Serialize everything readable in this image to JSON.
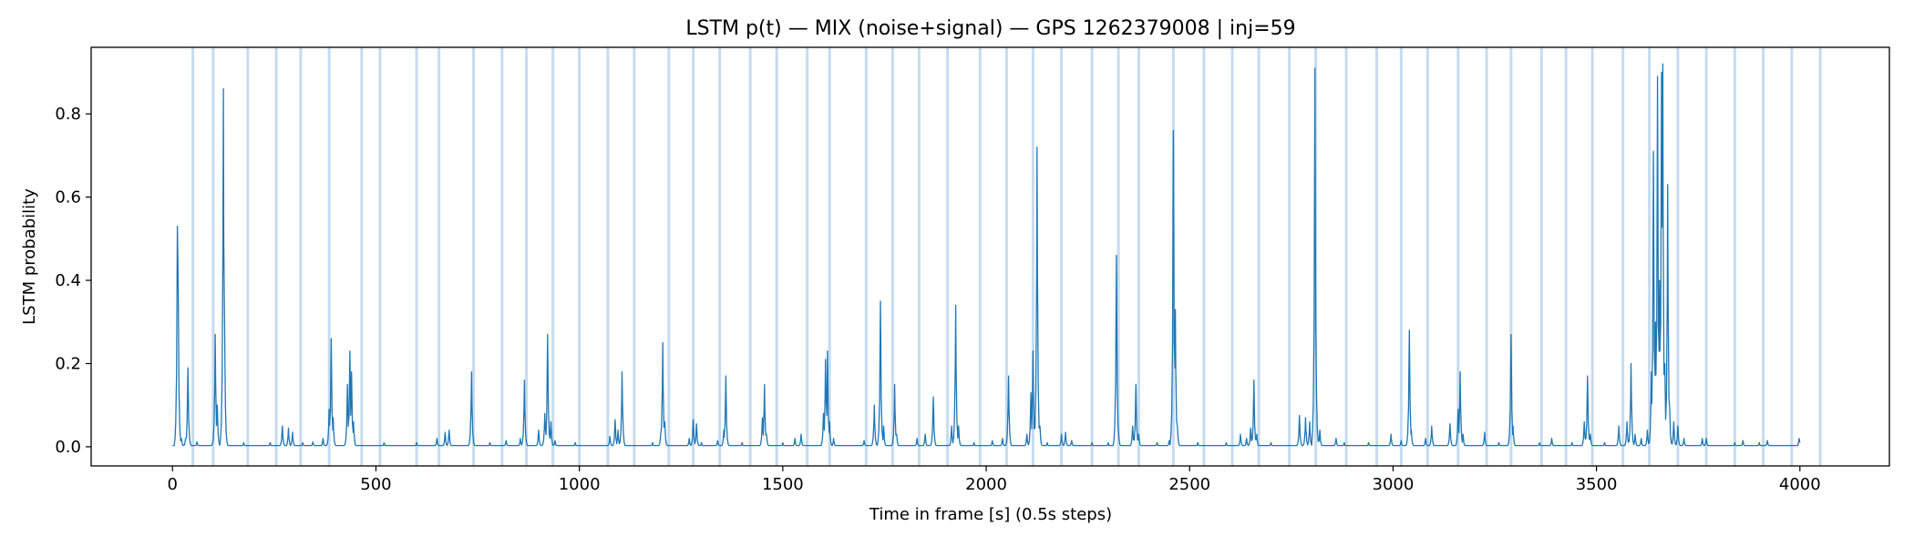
{
  "chart_data": {
    "type": "line",
    "title": "LSTM p(t) — MIX (noise+signal) — GPS 1262379008 | inj=59",
    "xlabel": "Time in frame [s] (0.5s steps)",
    "ylabel": "LSTM probability",
    "xlim": [
      -200,
      4220
    ],
    "ylim": [
      -0.046,
      0.96
    ],
    "xticks": [
      0,
      500,
      1000,
      1500,
      2000,
      2500,
      3000,
      3500,
      4000
    ],
    "yticks": [
      0.0,
      0.2,
      0.4,
      0.6,
      0.8
    ],
    "ytick_labels": [
      "0.0",
      "0.2",
      "0.4",
      "0.6",
      "0.8"
    ],
    "grid": false,
    "line_color": "#1f77b4",
    "injection_band_color": "#c6dbef",
    "injection_times": [
      50,
      100,
      185,
      255,
      315,
      385,
      465,
      510,
      600,
      655,
      740,
      810,
      870,
      935,
      1000,
      1070,
      1135,
      1220,
      1280,
      1345,
      1420,
      1485,
      1560,
      1615,
      1705,
      1770,
      1835,
      1905,
      1985,
      2050,
      2115,
      2185,
      2260,
      2325,
      2375,
      2460,
      2535,
      2605,
      2670,
      2745,
      2810,
      2885,
      2960,
      3020,
      3085,
      3160,
      3230,
      3290,
      3365,
      3425,
      3490,
      3565,
      3630,
      3700,
      3770,
      3840,
      3910,
      3980,
      4050
    ],
    "series": [
      {
        "base": 0.003,
        "peaks": [
          [
            12,
            0.53
          ],
          [
            14,
            0.4
          ],
          [
            22,
            0.02
          ],
          [
            32,
            0.02
          ],
          [
            38,
            0.19
          ],
          [
            60,
            0.012
          ],
          [
            105,
            0.27
          ],
          [
            110,
            0.1
          ],
          [
            125,
            0.86
          ],
          [
            128,
            0.3
          ],
          [
            175,
            0.01
          ],
          [
            240,
            0.01
          ],
          [
            270,
            0.05
          ],
          [
            285,
            0.045
          ],
          [
            295,
            0.035
          ],
          [
            320,
            0.01
          ],
          [
            345,
            0.012
          ],
          [
            370,
            0.02
          ],
          [
            385,
            0.09
          ],
          [
            390,
            0.26
          ],
          [
            395,
            0.07
          ],
          [
            430,
            0.15
          ],
          [
            436,
            0.23
          ],
          [
            440,
            0.18
          ],
          [
            445,
            0.06
          ],
          [
            520,
            0.01
          ],
          [
            600,
            0.01
          ],
          [
            650,
            0.02
          ],
          [
            670,
            0.035
          ],
          [
            680,
            0.04
          ],
          [
            735,
            0.18
          ],
          [
            780,
            0.01
          ],
          [
            820,
            0.015
          ],
          [
            855,
            0.02
          ],
          [
            865,
            0.16
          ],
          [
            900,
            0.04
          ],
          [
            915,
            0.08
          ],
          [
            922,
            0.27
          ],
          [
            930,
            0.06
          ],
          [
            940,
            0.015
          ],
          [
            990,
            0.01
          ],
          [
            1075,
            0.025
          ],
          [
            1088,
            0.065
          ],
          [
            1095,
            0.04
          ],
          [
            1105,
            0.18
          ],
          [
            1180,
            0.01
          ],
          [
            1200,
            0.03
          ],
          [
            1205,
            0.25
          ],
          [
            1210,
            0.06
          ],
          [
            1270,
            0.02
          ],
          [
            1280,
            0.065
          ],
          [
            1288,
            0.055
          ],
          [
            1300,
            0.01
          ],
          [
            1340,
            0.015
          ],
          [
            1355,
            0.04
          ],
          [
            1360,
            0.17
          ],
          [
            1400,
            0.01
          ],
          [
            1450,
            0.07
          ],
          [
            1455,
            0.15
          ],
          [
            1460,
            0.03
          ],
          [
            1500,
            0.01
          ],
          [
            1530,
            0.02
          ],
          [
            1545,
            0.03
          ],
          [
            1600,
            0.08
          ],
          [
            1605,
            0.21
          ],
          [
            1610,
            0.23
          ],
          [
            1615,
            0.06
          ],
          [
            1625,
            0.02
          ],
          [
            1700,
            0.015
          ],
          [
            1725,
            0.1
          ],
          [
            1740,
            0.35
          ],
          [
            1748,
            0.05
          ],
          [
            1775,
            0.15
          ],
          [
            1780,
            0.03
          ],
          [
            1830,
            0.02
          ],
          [
            1850,
            0.03
          ],
          [
            1870,
            0.12
          ],
          [
            1915,
            0.05
          ],
          [
            1925,
            0.34
          ],
          [
            1932,
            0.05
          ],
          [
            1970,
            0.01
          ],
          [
            2015,
            0.015
          ],
          [
            2040,
            0.02
          ],
          [
            2055,
            0.17
          ],
          [
            2100,
            0.03
          ],
          [
            2110,
            0.13
          ],
          [
            2115,
            0.23
          ],
          [
            2125,
            0.72
          ],
          [
            2132,
            0.05
          ],
          [
            2150,
            0.01
          ],
          [
            2185,
            0.03
          ],
          [
            2195,
            0.035
          ],
          [
            2210,
            0.015
          ],
          [
            2260,
            0.01
          ],
          [
            2300,
            0.01
          ],
          [
            2320,
            0.46
          ],
          [
            2325,
            0.04
          ],
          [
            2360,
            0.05
          ],
          [
            2368,
            0.15
          ],
          [
            2375,
            0.03
          ],
          [
            2420,
            0.01
          ],
          [
            2450,
            0.015
          ],
          [
            2460,
            0.76
          ],
          [
            2465,
            0.33
          ],
          [
            2470,
            0.05
          ],
          [
            2520,
            0.01
          ],
          [
            2590,
            0.01
          ],
          [
            2625,
            0.03
          ],
          [
            2640,
            0.02
          ],
          [
            2650,
            0.045
          ],
          [
            2658,
            0.16
          ],
          [
            2665,
            0.03
          ],
          [
            2700,
            0.01
          ],
          [
            2770,
            0.075
          ],
          [
            2785,
            0.07
          ],
          [
            2795,
            0.06
          ],
          [
            2808,
            0.91
          ],
          [
            2812,
            0.12
          ],
          [
            2820,
            0.04
          ],
          [
            2860,
            0.02
          ],
          [
            2880,
            0.01
          ],
          [
            2940,
            0.01
          ],
          [
            2995,
            0.03
          ],
          [
            3020,
            0.015
          ],
          [
            3040,
            0.28
          ],
          [
            3045,
            0.04
          ],
          [
            3080,
            0.02
          ],
          [
            3095,
            0.05
          ],
          [
            3140,
            0.055
          ],
          [
            3160,
            0.09
          ],
          [
            3165,
            0.18
          ],
          [
            3172,
            0.03
          ],
          [
            3225,
            0.035
          ],
          [
            3260,
            0.01
          ],
          [
            3290,
            0.27
          ],
          [
            3295,
            0.05
          ],
          [
            3360,
            0.01
          ],
          [
            3390,
            0.02
          ],
          [
            3440,
            0.01
          ],
          [
            3470,
            0.06
          ],
          [
            3478,
            0.17
          ],
          [
            3485,
            0.03
          ],
          [
            3520,
            0.01
          ],
          [
            3555,
            0.05
          ],
          [
            3575,
            0.06
          ],
          [
            3585,
            0.2
          ],
          [
            3595,
            0.03
          ],
          [
            3610,
            0.02
          ],
          [
            3625,
            0.04
          ],
          [
            3635,
            0.18
          ],
          [
            3640,
            0.71
          ],
          [
            3645,
            0.3
          ],
          [
            3650,
            0.89
          ],
          [
            3655,
            0.4
          ],
          [
            3660,
            0.9
          ],
          [
            3663,
            0.92
          ],
          [
            3668,
            0.2
          ],
          [
            3675,
            0.63
          ],
          [
            3680,
            0.09
          ],
          [
            3690,
            0.06
          ],
          [
            3700,
            0.05
          ],
          [
            3715,
            0.02
          ],
          [
            3760,
            0.02
          ],
          [
            3770,
            0.02
          ],
          [
            3840,
            0.01
          ],
          [
            3860,
            0.015
          ],
          [
            3900,
            0.01
          ],
          [
            3920,
            0.015
          ],
          [
            3998,
            0.02
          ],
          [
            4000,
            0.01
          ]
        ]
      }
    ]
  }
}
